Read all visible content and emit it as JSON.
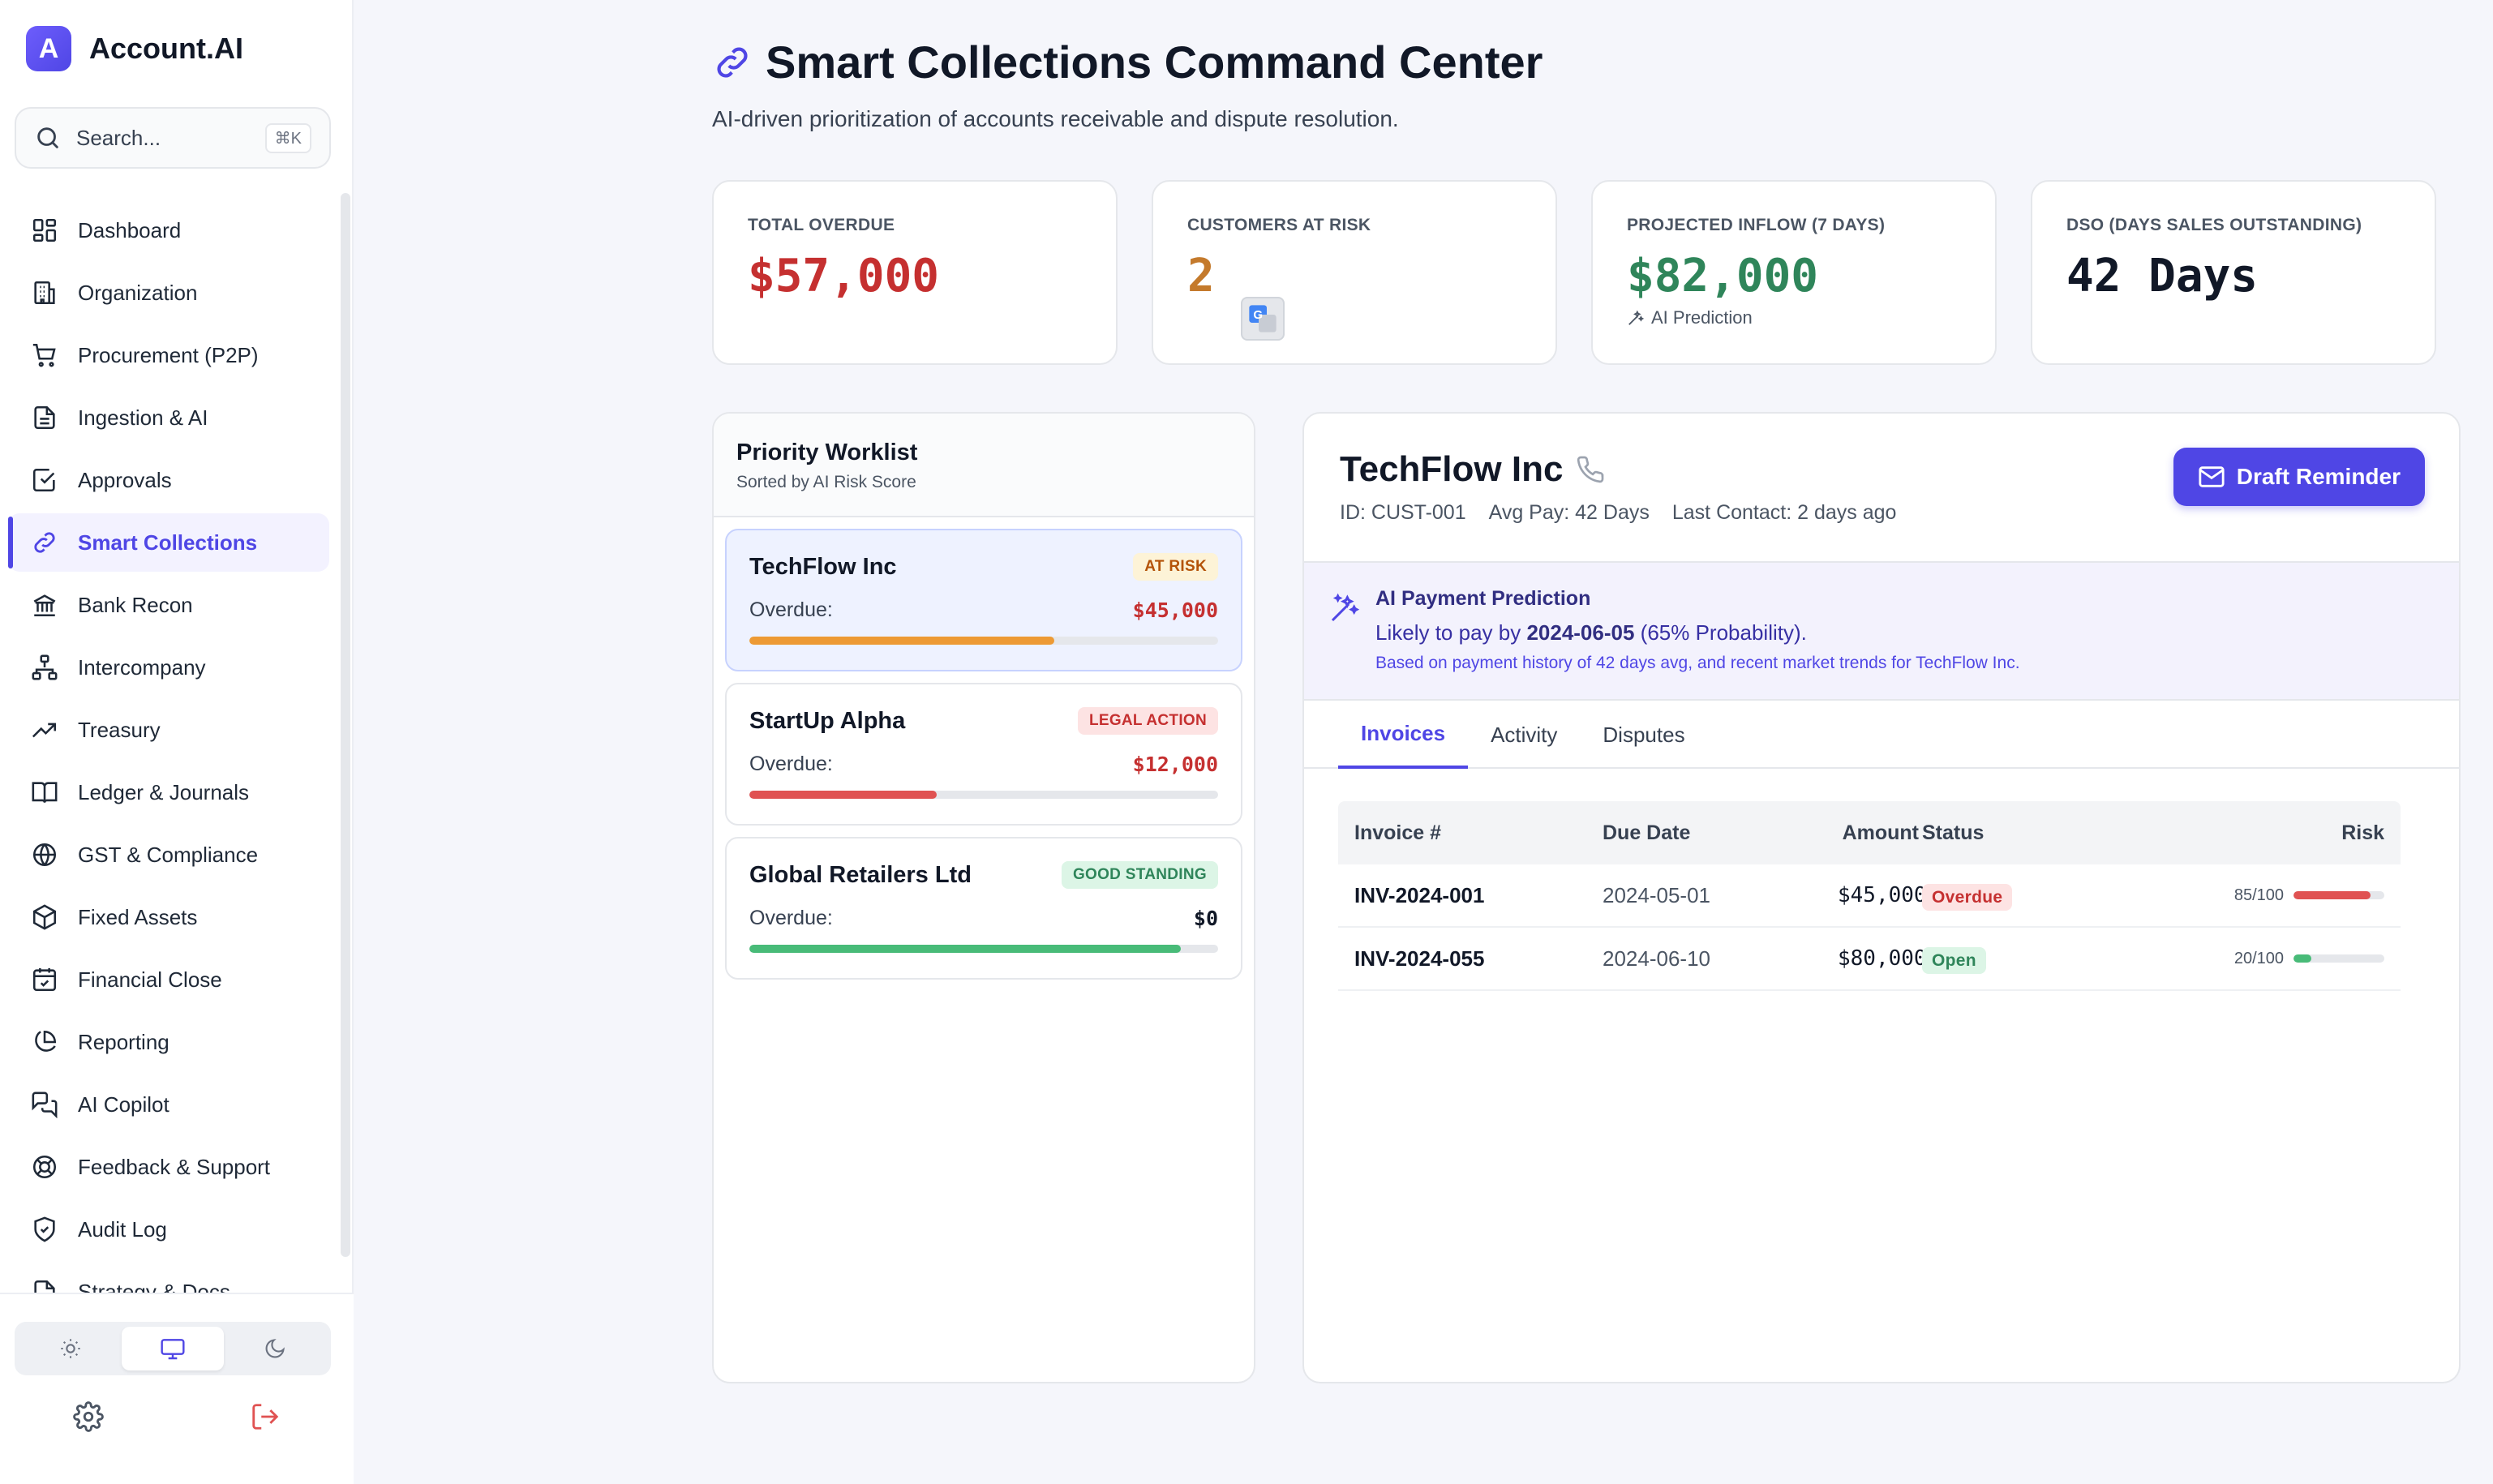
{
  "app": {
    "name": "Account.AI",
    "logo_letter": "A"
  },
  "search": {
    "placeholder": "Search...",
    "shortcut": "⌘K"
  },
  "sidebar": {
    "items": [
      {
        "label": "Dashboard",
        "icon": "grid-icon"
      },
      {
        "label": "Organization",
        "icon": "building-icon"
      },
      {
        "label": "Procurement (P2P)",
        "icon": "cart-icon"
      },
      {
        "label": "Ingestion & AI",
        "icon": "file-text-icon"
      },
      {
        "label": "Approvals",
        "icon": "check-square-icon"
      },
      {
        "label": "Smart Collections",
        "icon": "link-icon",
        "active": true
      },
      {
        "label": "Bank Recon",
        "icon": "bank-icon"
      },
      {
        "label": "Intercompany",
        "icon": "network-icon"
      },
      {
        "label": "Treasury",
        "icon": "trending-up-icon"
      },
      {
        "label": "Ledger & Journals",
        "icon": "book-open-icon"
      },
      {
        "label": "GST & Compliance",
        "icon": "globe-icon"
      },
      {
        "label": "Fixed Assets",
        "icon": "box-icon"
      },
      {
        "label": "Financial Close",
        "icon": "calendar-check-icon"
      },
      {
        "label": "Reporting",
        "icon": "pie-chart-icon"
      },
      {
        "label": "AI Copilot",
        "icon": "messages-icon"
      },
      {
        "label": "Feedback & Support",
        "icon": "lifebuoy-icon"
      },
      {
        "label": "Audit Log",
        "icon": "shield-check-icon"
      },
      {
        "label": "Strategy & Docs",
        "icon": "file-icon"
      }
    ]
  },
  "page": {
    "title": "Smart Collections Command Center",
    "subtitle": "AI-driven prioritization of accounts receivable and dispute resolution."
  },
  "stats": [
    {
      "label": "TOTAL OVERDUE",
      "value": "$57,000",
      "color": "#c53030"
    },
    {
      "label": "CUSTOMERS AT RISK",
      "value": "2",
      "color": "#c47a2c"
    },
    {
      "label": "PROJECTED INFLOW (7 DAYS)",
      "value": "$82,000",
      "color": "#2f855a",
      "sub": "AI Prediction"
    },
    {
      "label": "DSO (DAYS SALES OUTSTANDING)",
      "value": "42 Days",
      "color": "#111827"
    }
  ],
  "worklist": {
    "title": "Priority Worklist",
    "subtitle": "Sorted by AI Risk Score",
    "overdue_label": "Overdue:",
    "items": [
      {
        "name": "TechFlow Inc",
        "badge": "AT RISK",
        "badge_bg": "#fdf3d7",
        "badge_fg": "#b45309",
        "amount": "$45,000",
        "amount_color": "#c53030",
        "progress": 0.65,
        "bar_color": "#ed9a34"
      },
      {
        "name": "StartUp Alpha",
        "badge": "LEGAL ACTION",
        "badge_bg": "#fde3e3",
        "badge_fg": "#c53030",
        "amount": "$12,000",
        "amount_color": "#c53030",
        "progress": 0.4,
        "bar_color": "#e05252"
      },
      {
        "name": "Global Retailers Ltd",
        "badge": "GOOD STANDING",
        "badge_bg": "#dcf5e6",
        "badge_fg": "#2f855a",
        "amount": "$0",
        "amount_color": "#111827",
        "progress": 0.92,
        "bar_color": "#48bb78"
      }
    ]
  },
  "customer": {
    "name": "TechFlow Inc",
    "id": "ID: CUST-001",
    "avg_pay": "Avg Pay: 42 Days",
    "last_contact": "Last Contact: 2 days ago",
    "draft_button": "Draft Reminder"
  },
  "ai_prediction": {
    "title": "AI Payment Prediction",
    "line_prefix": "Likely to pay by ",
    "date": "2024-06-05",
    "line_suffix": " (65% Probability).",
    "footnote": "Based on payment history of 42 days avg, and recent market trends for TechFlow Inc."
  },
  "tabs": [
    "Invoices",
    "Activity",
    "Disputes"
  ],
  "invoices": {
    "headers": [
      "Invoice #",
      "Due Date",
      "Amount",
      "Status",
      "Risk"
    ],
    "rows": [
      {
        "invoice": "INV-2024-001",
        "due": "2024-05-01",
        "amount": "$45,000",
        "status": "Overdue",
        "status_bg": "#fde3e3",
        "status_fg": "#c53030",
        "risk_text": "85/100",
        "risk": 0.85,
        "risk_color": "#e05252"
      },
      {
        "invoice": "INV-2024-055",
        "due": "2024-06-10",
        "amount": "$80,000",
        "status": "Open",
        "status_bg": "#dcf5e6",
        "status_fg": "#2f855a",
        "risk_text": "20/100",
        "risk": 0.2,
        "risk_color": "#48bb78"
      }
    ]
  }
}
